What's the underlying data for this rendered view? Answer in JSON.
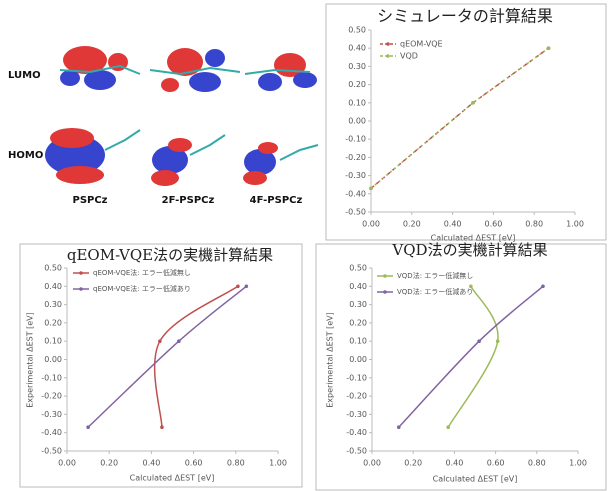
{
  "orbital_figure": {
    "row_labels": [
      "LUMO",
      "HOMO"
    ],
    "molecule_labels": [
      "PSPCz",
      "2F-PSPCz",
      "4F-PSPCz"
    ]
  },
  "chart_data": [
    {
      "type": "line",
      "title": "シミュレータの計算結果",
      "x_label": "Calculated ΔEST [eV]",
      "series": [
        {
          "name": "qEOM-VQE",
          "color": "#c0504d",
          "dashed": true,
          "smooth": false,
          "x": [
            0.0,
            0.5,
            0.87
          ],
          "values": [
            -0.37,
            0.1,
            0.4
          ]
        },
        {
          "name": "VQD",
          "color": "#9bbb59",
          "dashed": true,
          "smooth": false,
          "x": [
            0.0,
            0.5,
            0.87
          ],
          "values": [
            -0.37,
            0.1,
            0.4
          ]
        }
      ],
      "xlim": [
        0,
        1
      ],
      "ylim": [
        -0.5,
        0.5
      ],
      "xticks": [
        {
          "value": 0,
          "label": "0.00"
        },
        {
          "value": 0.2,
          "label": "0.20"
        },
        {
          "value": 0.4,
          "label": "0.40"
        },
        {
          "value": 0.6,
          "label": "0.60"
        },
        {
          "value": 0.8,
          "label": "0.80"
        },
        {
          "value": 1,
          "label": "1.00"
        }
      ],
      "yticks": [
        {
          "value": -0.5,
          "label": "-0.50"
        },
        {
          "value": -0.4,
          "label": "-0.40"
        },
        {
          "value": -0.3,
          "label": "-0.30"
        },
        {
          "value": -0.2,
          "label": "-0.20"
        },
        {
          "value": -0.1,
          "label": "-0.10"
        },
        {
          "value": 0,
          "label": "0.00"
        },
        {
          "value": 0.1,
          "label": "0.10"
        },
        {
          "value": 0.2,
          "label": "0.20"
        },
        {
          "value": 0.3,
          "label": "0.30"
        },
        {
          "value": 0.4,
          "label": "0.40"
        },
        {
          "value": 0.5,
          "label": "0.50"
        }
      ],
      "grid": false,
      "legend": "top-left"
    },
    {
      "type": "line",
      "title": "qEOM-VQE法の実機計算結果",
      "x_label": "Calculated ΔEST [eV]",
      "y_label": "Experimental ΔEST [eV]",
      "series": [
        {
          "name": "qEOM-VQE法: エラー低減無し",
          "color": "#c0504d",
          "dashed": false,
          "smooth": true,
          "x": [
            0.45,
            0.44,
            0.81
          ],
          "values": [
            -0.37,
            0.1,
            0.4
          ]
        },
        {
          "name": "qEOM-VQE法: エラー低減あり",
          "color": "#8064a2",
          "dashed": false,
          "smooth": true,
          "x": [
            0.1,
            0.53,
            0.85
          ],
          "values": [
            -0.37,
            0.1,
            0.4
          ]
        }
      ],
      "xlim": [
        0,
        1
      ],
      "ylim": [
        -0.5,
        0.5
      ],
      "xticks": [
        {
          "value": 0,
          "label": "0.00"
        },
        {
          "value": 0.2,
          "label": "0.20"
        },
        {
          "value": 0.4,
          "label": "0.40"
        },
        {
          "value": 0.6,
          "label": "0.60"
        },
        {
          "value": 0.8,
          "label": "0.80"
        },
        {
          "value": 1,
          "label": "1.00"
        }
      ],
      "yticks": [
        {
          "value": -0.5,
          "label": "-0.50"
        },
        {
          "value": -0.4,
          "label": "-0.40"
        },
        {
          "value": -0.3,
          "label": "-0.30"
        },
        {
          "value": -0.2,
          "label": "-0.20"
        },
        {
          "value": -0.1,
          "label": "-0.10"
        },
        {
          "value": 0,
          "label": "0.00"
        },
        {
          "value": 0.1,
          "label": "0.10"
        },
        {
          "value": 0.2,
          "label": "0.20"
        },
        {
          "value": 0.3,
          "label": "0.30"
        },
        {
          "value": 0.4,
          "label": "0.40"
        },
        {
          "value": 0.5,
          "label": "0.50"
        }
      ],
      "grid": false,
      "legend": "top-left"
    },
    {
      "type": "line",
      "title": "VQD法の実機計算結果",
      "x_label": "Calculated ΔEST [eV]",
      "y_label": "Experimental ΔEST [eV]",
      "series": [
        {
          "name": "VQD法: エラー低減無し",
          "color": "#9bbb59",
          "dashed": false,
          "smooth": true,
          "x": [
            0.37,
            0.61,
            0.48
          ],
          "values": [
            -0.37,
            0.1,
            0.4
          ]
        },
        {
          "name": "VQD法: エラー低減あり",
          "color": "#8064a2",
          "dashed": false,
          "smooth": true,
          "x": [
            0.13,
            0.52,
            0.83
          ],
          "values": [
            -0.37,
            0.1,
            0.4
          ]
        }
      ],
      "xlim": [
        0,
        1
      ],
      "ylim": [
        -0.5,
        0.5
      ],
      "xticks": [
        {
          "value": 0,
          "label": "0.00"
        },
        {
          "value": 0.2,
          "label": "0.20"
        },
        {
          "value": 0.4,
          "label": "0.40"
        },
        {
          "value": 0.6,
          "label": "0.60"
        },
        {
          "value": 0.8,
          "label": "0.80"
        },
        {
          "value": 1,
          "label": "1.00"
        }
      ],
      "yticks": [
        {
          "value": -0.5,
          "label": "-0.50"
        },
        {
          "value": -0.4,
          "label": "-0.40"
        },
        {
          "value": -0.3,
          "label": "-0.30"
        },
        {
          "value": -0.2,
          "label": "-0.20"
        },
        {
          "value": -0.1,
          "label": "-0.10"
        },
        {
          "value": 0,
          "label": "0.00"
        },
        {
          "value": 0.1,
          "label": "0.10"
        },
        {
          "value": 0.2,
          "label": "0.20"
        },
        {
          "value": 0.3,
          "label": "0.30"
        },
        {
          "value": 0.4,
          "label": "0.40"
        },
        {
          "value": 0.5,
          "label": "0.50"
        }
      ],
      "grid": false,
      "legend": "top-left"
    }
  ]
}
